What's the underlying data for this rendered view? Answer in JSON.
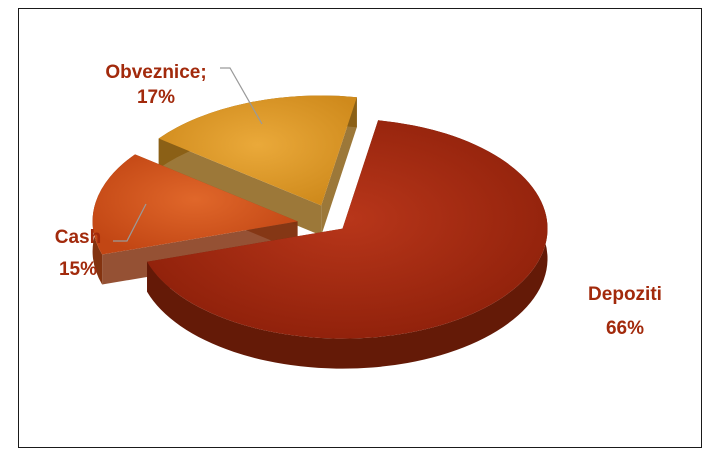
{
  "chart_data": {
    "type": "pie",
    "title": "",
    "slices": [
      {
        "name": "Depoziti",
        "value": 66,
        "label_name": "Depoziti",
        "label_value": "66%",
        "color": "#A22A0C"
      },
      {
        "name": "Cash",
        "value": 15,
        "label_name": "Cash",
        "label_value": "15%",
        "color": "#D4531A"
      },
      {
        "name": "Obveznice",
        "value": 17,
        "label_name": "Obveznice;",
        "label_value": "17%",
        "color": "#E09B24"
      }
    ],
    "label_color": "#A22A0C",
    "legend": "none",
    "style": "3d-exploded"
  }
}
